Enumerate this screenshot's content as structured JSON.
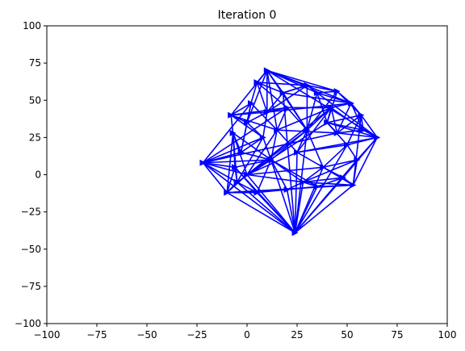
{
  "chart_data": {
    "type": "line",
    "title": "Iteration 0",
    "xlabel": "",
    "ylabel": "",
    "xlim": [
      -100,
      100
    ],
    "ylim": [
      -100,
      100
    ],
    "xticks": [
      "−100",
      "−75",
      "−50",
      "−25",
      "0",
      "25",
      "50",
      "75",
      "100"
    ],
    "yticks": [
      "100",
      "75",
      "50",
      "25",
      "0",
      "−25",
      "−50",
      "−75",
      "−100"
    ],
    "xtick_values": [
      -100,
      -75,
      -50,
      -25,
      0,
      25,
      50,
      75,
      100
    ],
    "ytick_values": [
      100,
      75,
      50,
      25,
      0,
      -25,
      -50,
      -75,
      -100
    ],
    "grid": false,
    "color": "#0000ff",
    "marker": "triangle-right",
    "points": [
      [
        -22,
        8
      ],
      [
        24,
        -39
      ],
      [
        65,
        25
      ],
      [
        10,
        70
      ],
      [
        45,
        56
      ],
      [
        57,
        40
      ],
      [
        -8,
        40
      ],
      [
        -7,
        28
      ],
      [
        -10,
        -12
      ],
      [
        53,
        -7
      ],
      [
        0,
        0
      ],
      [
        5,
        62
      ],
      [
        2,
        48
      ],
      [
        30,
        60
      ],
      [
        35,
        55
      ],
      [
        20,
        45
      ],
      [
        15,
        30
      ],
      [
        40,
        35
      ],
      [
        50,
        20
      ],
      [
        55,
        10
      ],
      [
        48,
        -2
      ],
      [
        35,
        -8
      ],
      [
        20,
        -10
      ],
      [
        5,
        -12
      ],
      [
        -5,
        -5
      ],
      [
        -3,
        15
      ],
      [
        8,
        25
      ],
      [
        25,
        15
      ],
      [
        38,
        5
      ],
      [
        45,
        28
      ],
      [
        12,
        10
      ],
      [
        30,
        30
      ],
      [
        18,
        55
      ],
      [
        42,
        45
      ],
      [
        -6,
        5
      ],
      [
        58,
        30
      ],
      [
        28,
        -5
      ],
      [
        0,
        35
      ],
      [
        10,
        42
      ],
      [
        52,
        48
      ]
    ],
    "edges": [
      [
        0,
        10
      ],
      [
        0,
        8
      ],
      [
        0,
        26
      ],
      [
        0,
        12
      ],
      [
        0,
        1
      ],
      [
        0,
        15
      ],
      [
        0,
        29
      ],
      [
        0,
        30
      ],
      [
        0,
        24
      ],
      [
        0,
        34
      ],
      [
        0,
        25
      ],
      [
        1,
        8
      ],
      [
        1,
        9
      ],
      [
        1,
        10
      ],
      [
        1,
        23
      ],
      [
        1,
        22
      ],
      [
        1,
        21
      ],
      [
        1,
        20
      ],
      [
        1,
        36
      ],
      [
        1,
        28
      ],
      [
        1,
        32
      ],
      [
        1,
        24
      ],
      [
        1,
        34
      ],
      [
        1,
        30
      ],
      [
        1,
        31
      ],
      [
        1,
        27
      ],
      [
        1,
        19
      ],
      [
        1,
        18
      ],
      [
        2,
        5
      ],
      [
        2,
        9
      ],
      [
        2,
        35
      ],
      [
        2,
        18
      ],
      [
        2,
        19
      ],
      [
        2,
        17
      ],
      [
        2,
        29
      ],
      [
        2,
        3
      ],
      [
        2,
        14
      ],
      [
        2,
        20
      ],
      [
        2,
        27
      ],
      [
        3,
        11
      ],
      [
        3,
        4
      ],
      [
        3,
        13
      ],
      [
        3,
        6
      ],
      [
        3,
        16
      ],
      [
        3,
        31
      ],
      [
        3,
        32
      ],
      [
        3,
        14
      ],
      [
        3,
        37
      ],
      [
        3,
        38
      ],
      [
        3,
        39
      ],
      [
        4,
        5
      ],
      [
        4,
        14
      ],
      [
        4,
        13
      ],
      [
        4,
        17
      ],
      [
        4,
        31
      ],
      [
        4,
        39
      ],
      [
        5,
        9
      ],
      [
        5,
        17
      ],
      [
        5,
        18
      ],
      [
        5,
        29
      ],
      [
        5,
        35
      ],
      [
        5,
        39
      ],
      [
        6,
        7
      ],
      [
        6,
        12
      ],
      [
        6,
        26
      ],
      [
        6,
        37
      ],
      [
        6,
        15
      ],
      [
        6,
        16
      ],
      [
        6,
        38
      ],
      [
        7,
        8
      ],
      [
        7,
        10
      ],
      [
        7,
        25
      ],
      [
        7,
        34
      ],
      [
        7,
        24
      ],
      [
        7,
        30
      ],
      [
        8,
        24
      ],
      [
        8,
        23
      ],
      [
        8,
        22
      ],
      [
        8,
        10
      ],
      [
        8,
        34
      ],
      [
        8,
        9
      ],
      [
        9,
        20
      ],
      [
        9,
        21
      ],
      [
        9,
        28
      ],
      [
        9,
        36
      ],
      [
        9,
        19
      ],
      [
        10,
        16
      ],
      [
        10,
        27
      ],
      [
        10,
        30
      ],
      [
        10,
        31
      ],
      [
        10,
        33
      ],
      [
        10,
        17
      ],
      [
        10,
        36
      ],
      [
        10,
        28
      ],
      [
        11,
        12
      ],
      [
        11,
        15
      ],
      [
        11,
        32
      ],
      [
        11,
        38
      ],
      [
        11,
        13
      ],
      [
        12,
        25
      ],
      [
        12,
        37
      ],
      [
        12,
        16
      ],
      [
        13,
        14
      ],
      [
        13,
        32
      ],
      [
        13,
        31
      ],
      [
        13,
        38
      ],
      [
        14,
        39
      ],
      [
        14,
        17
      ],
      [
        14,
        31
      ],
      [
        15,
        16
      ],
      [
        15,
        31
      ],
      [
        15,
        33
      ],
      [
        15,
        38
      ],
      [
        16,
        27
      ],
      [
        16,
        30
      ],
      [
        16,
        33
      ],
      [
        16,
        29
      ],
      [
        17,
        29
      ],
      [
        17,
        18
      ],
      [
        17,
        33
      ],
      [
        17,
        35
      ],
      [
        18,
        19
      ],
      [
        18,
        28
      ],
      [
        18,
        27
      ],
      [
        19,
        20
      ],
      [
        19,
        28
      ],
      [
        19,
        36
      ],
      [
        20,
        21
      ],
      [
        20,
        36
      ],
      [
        20,
        28
      ],
      [
        21,
        22
      ],
      [
        21,
        36
      ],
      [
        21,
        30
      ],
      [
        22,
        23
      ],
      [
        22,
        30
      ],
      [
        22,
        36
      ],
      [
        23,
        24
      ],
      [
        23,
        30
      ],
      [
        23,
        34
      ],
      [
        24,
        34
      ],
      [
        24,
        26
      ],
      [
        24,
        30
      ],
      [
        25,
        26
      ],
      [
        25,
        37
      ],
      [
        25,
        30
      ],
      [
        26,
        30
      ],
      [
        26,
        37
      ],
      [
        26,
        38
      ],
      [
        27,
        28
      ],
      [
        27,
        33
      ],
      [
        27,
        31
      ],
      [
        28,
        36
      ],
      [
        28,
        31
      ],
      [
        29,
        33
      ],
      [
        29,
        35
      ],
      [
        29,
        39
      ],
      [
        30,
        31
      ],
      [
        30,
        36
      ],
      [
        31,
        32
      ],
      [
        31,
        33
      ],
      [
        32,
        38
      ],
      [
        32,
        39
      ],
      [
        32,
        13
      ],
      [
        33,
        39
      ],
      [
        33,
        35
      ],
      [
        34,
        30
      ],
      [
        35,
        39
      ],
      [
        37,
        38
      ],
      [
        38,
        39
      ]
    ]
  }
}
